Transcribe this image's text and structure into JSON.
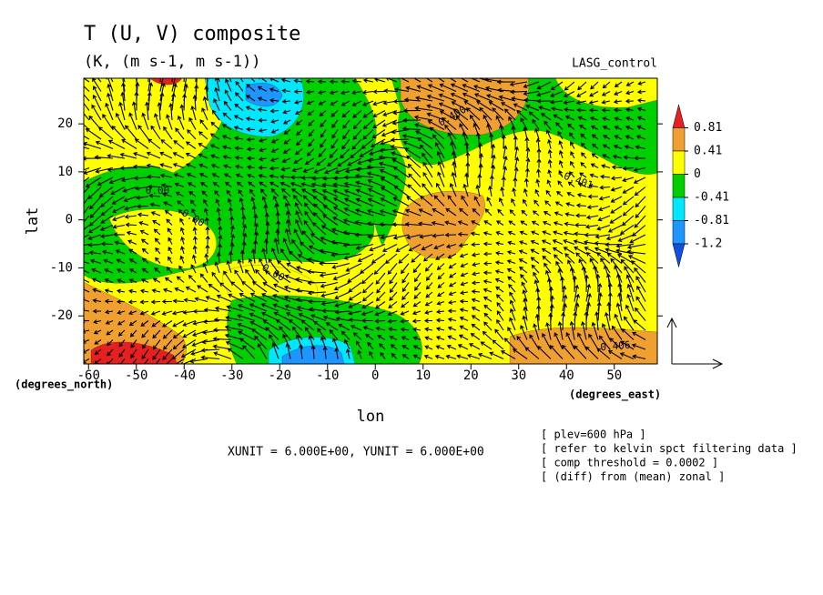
{
  "chart_data": {
    "type": "contour",
    "title": "T (U, V) composite",
    "subtitle": "(K, (m s-1, m s-1))",
    "dataset": "LASG_control",
    "xlabel": "lon",
    "ylabel": "lat",
    "xunits": "(degrees_east)",
    "yunits": "(degrees_north)",
    "xlim": [
      -61,
      59
    ],
    "ylim": [
      -30,
      29.5
    ],
    "xticks": [
      -60,
      -50,
      -40,
      -30,
      -20,
      -10,
      0,
      10,
      20,
      30,
      40,
      50
    ],
    "yticks": [
      -20,
      -10,
      0,
      10,
      20
    ],
    "levels": [
      0.81,
      0.41,
      0,
      -0.41,
      -0.81,
      -1.2
    ],
    "colors": [
      "#e62020",
      "#f0a030",
      "#ffff00",
      "#00d000",
      "#00e8ff",
      "#1e96ff",
      "#1050e0"
    ],
    "contour_labels": [
      "0.400",
      "0.00",
      "0.00",
      "-0.401",
      "0.00",
      "0.406"
    ],
    "vector_units": "XUNIT = 6.000E+00, YUNIT = 6.000E+00",
    "notes": [
      "[ plev=600 hPa ]",
      "[ refer to kelvin spct filtering data ]",
      "[ comp threshold = 0.0002 ]",
      "[ (diff) from (mean) zonal ]"
    ]
  }
}
